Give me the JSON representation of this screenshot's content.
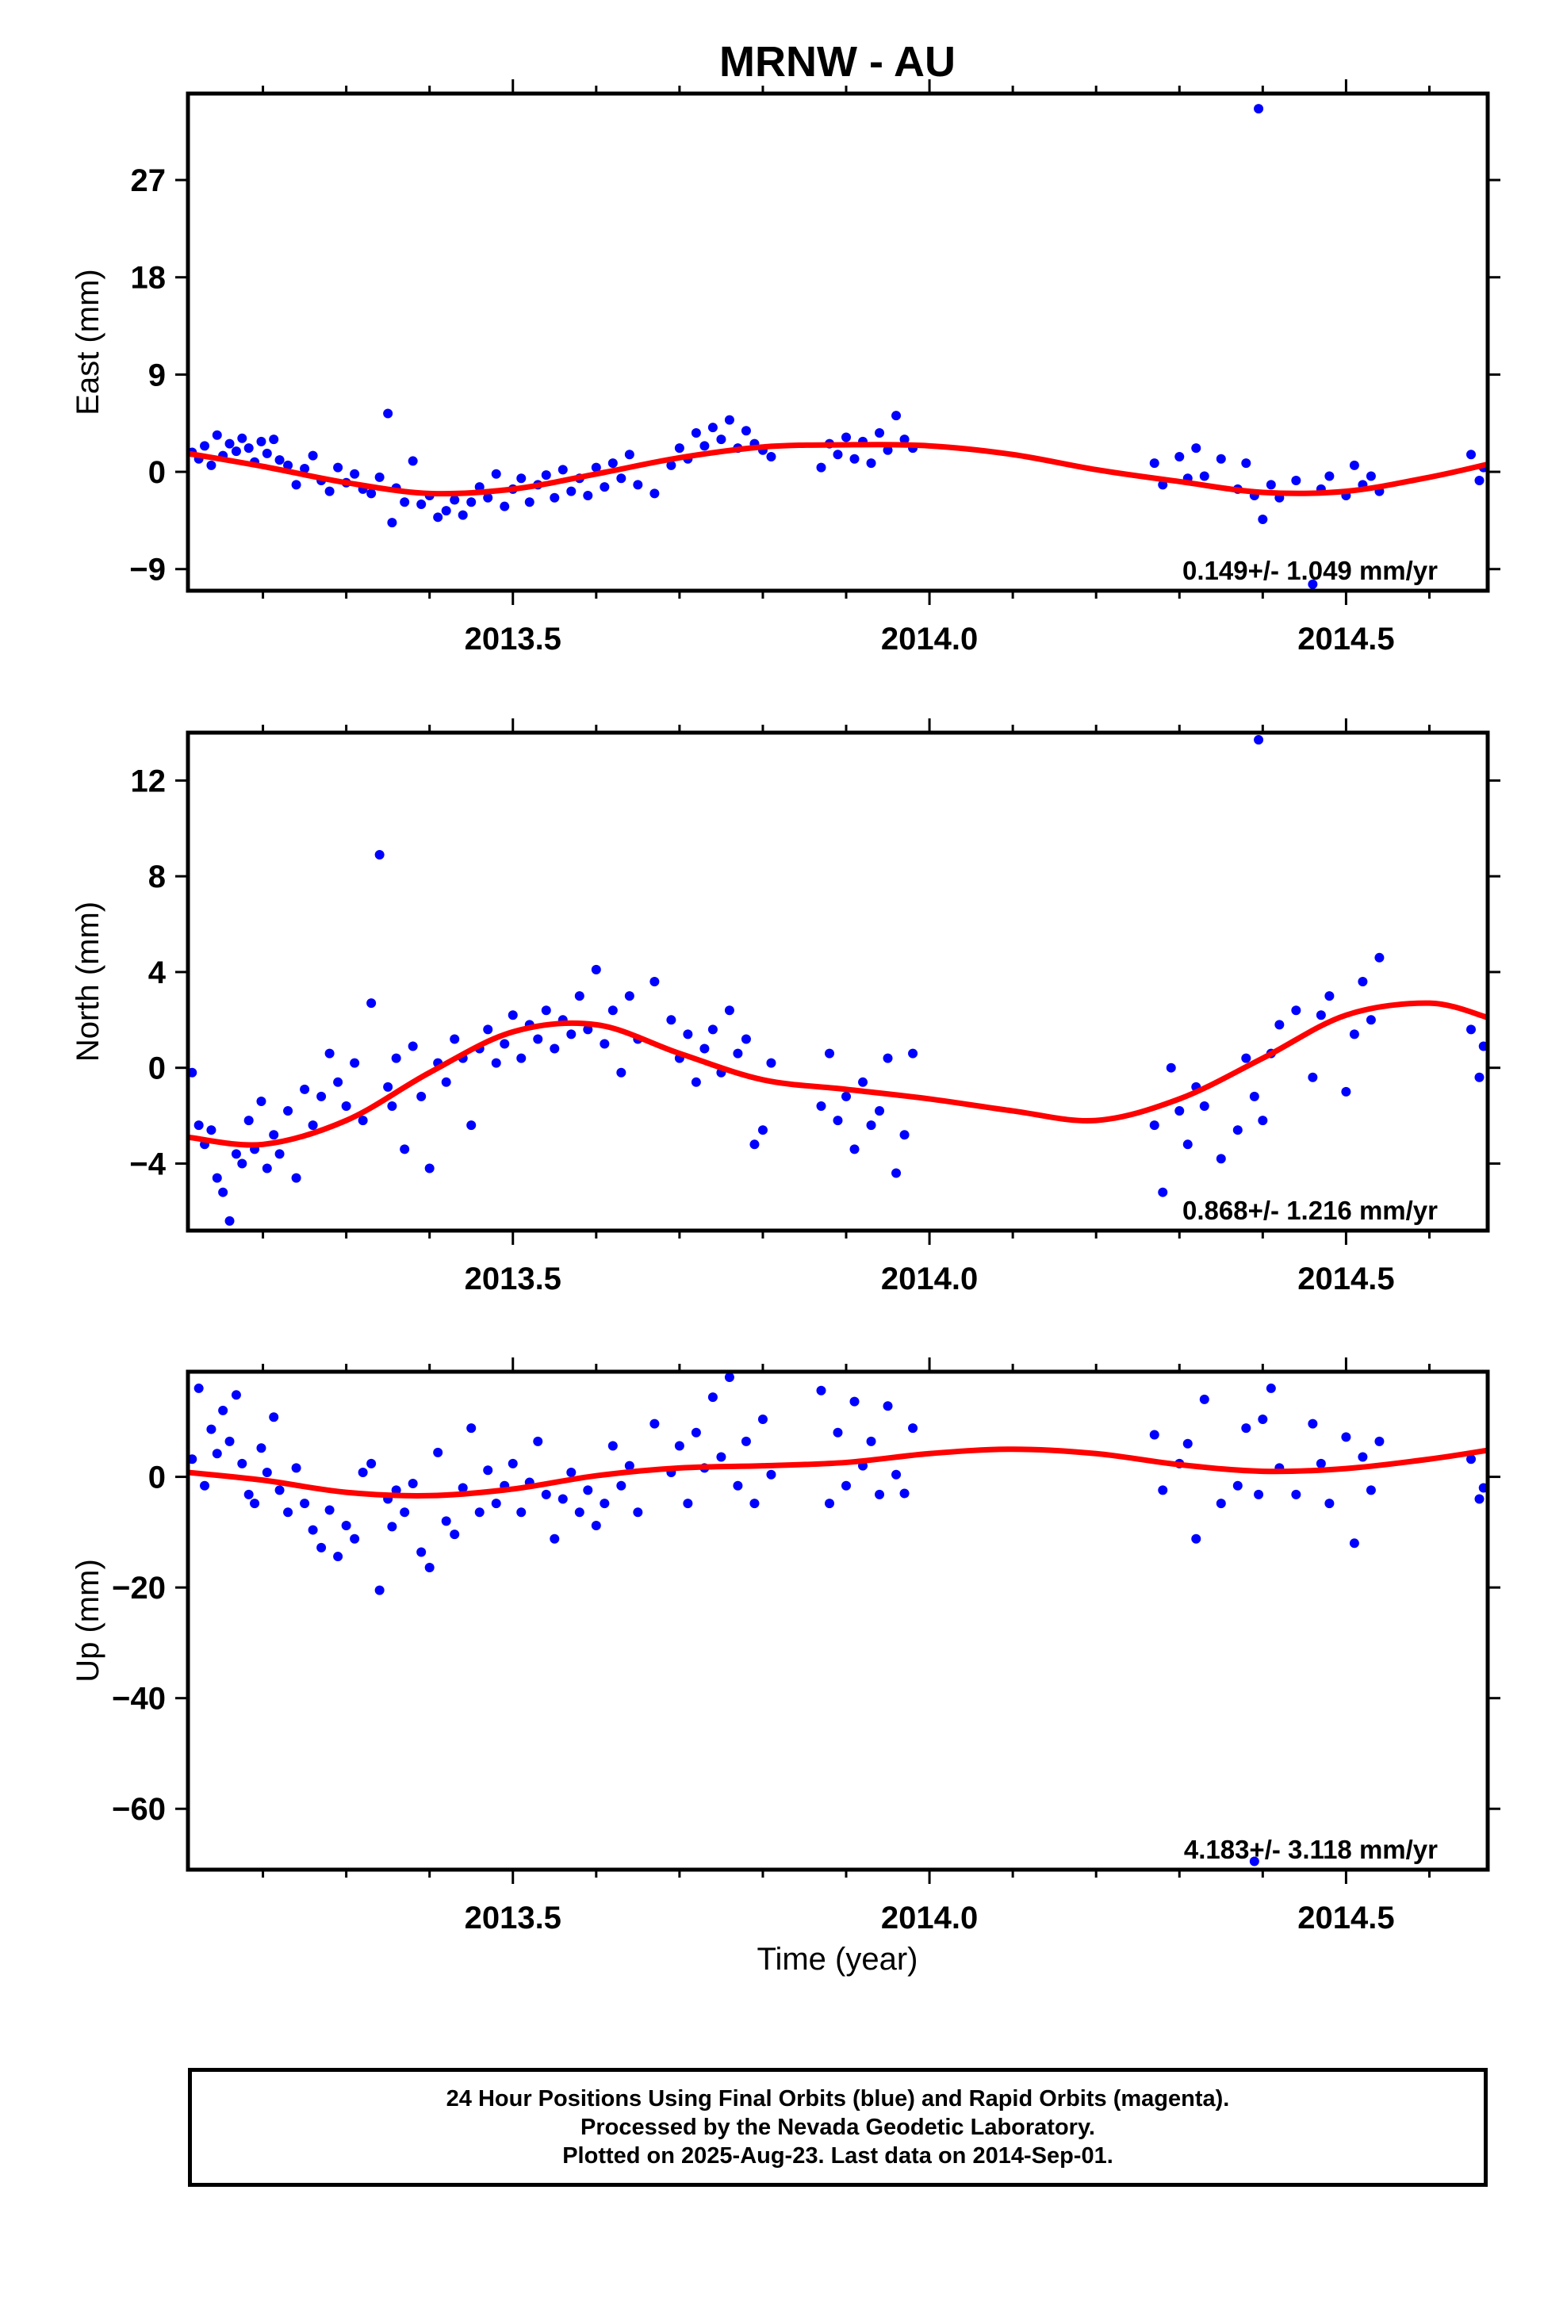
{
  "title": "MRNW - AU",
  "xlabel": "Time (year)",
  "colors": {
    "points": "#0000ff",
    "fit": "#ff0000",
    "frame": "#000000"
  },
  "footer": {
    "line1": "24 Hour Positions Using Final Orbits (blue) and Rapid Orbits (magenta).",
    "line2": "Processed by the Nevada Geodetic Laboratory.",
    "line3": "Plotted on 2025-Aug-23. Last data on 2014-Sep-01."
  },
  "chart_data": [
    {
      "type": "scatter",
      "component": "East",
      "ylabel": "East (mm)",
      "ylim": [
        -11,
        35
      ],
      "yticks": [
        -9,
        0,
        9,
        18,
        27
      ],
      "xlim": [
        2013.11,
        2014.67
      ],
      "xticks": [
        2013.5,
        2014.0,
        2014.5
      ],
      "velocity": "0.149+/- 1.049 mm/yr",
      "series": [
        {
          "kind": "points",
          "x": [
            2013.115,
            2013.123,
            2013.13,
            2013.138,
            2013.145,
            2013.152,
            2013.16,
            2013.168,
            2013.175,
            2013.183,
            2013.19,
            2013.198,
            2013.205,
            2013.213,
            2013.22,
            2013.23,
            2013.24,
            2013.25,
            2013.26,
            2013.27,
            2013.28,
            2013.29,
            2013.3,
            2013.31,
            2013.32,
            2013.33,
            2013.34,
            2013.35,
            2013.355,
            2013.36,
            2013.37,
            2013.38,
            2013.39,
            2013.4,
            2013.41,
            2013.42,
            2013.43,
            2013.44,
            2013.45,
            2013.46,
            2013.47,
            2013.48,
            2013.49,
            2013.5,
            2013.51,
            2013.52,
            2013.53,
            2013.54,
            2013.55,
            2013.56,
            2013.57,
            2013.58,
            2013.59,
            2013.6,
            2013.61,
            2013.62,
            2013.63,
            2013.64,
            2013.65,
            2013.67,
            2013.69,
            2013.7,
            2013.71,
            2013.72,
            2013.73,
            2013.74,
            2013.75,
            2013.76,
            2013.77,
            2013.78,
            2013.79,
            2013.8,
            2013.81,
            2013.87,
            2013.88,
            2013.89,
            2013.9,
            2013.91,
            2013.92,
            2013.93,
            2013.94,
            2013.95,
            2013.96,
            2013.97,
            2013.98,
            2014.27,
            2014.28,
            2014.3,
            2014.31,
            2014.32,
            2014.33,
            2014.35,
            2014.37,
            2014.38,
            2014.39,
            2014.395,
            2014.4,
            2014.41,
            2014.42,
            2014.44,
            2014.46,
            2014.47,
            2014.48,
            2014.5,
            2014.51,
            2014.52,
            2014.53,
            2014.54,
            2014.65,
            2014.66,
            2014.665
          ],
          "y": [
            1.8,
            1.2,
            2.4,
            0.6,
            3.4,
            1.5,
            2.6,
            1.9,
            3.1,
            2.2,
            0.9,
            2.8,
            1.7,
            3.0,
            1.1,
            0.6,
            -1.2,
            0.3,
            1.5,
            -0.8,
            -1.8,
            0.4,
            -1.0,
            -0.2,
            -1.6,
            -2.0,
            -0.5,
            5.4,
            -4.7,
            -1.5,
            -2.8,
            1.0,
            -3.0,
            -2.2,
            -4.2,
            -3.6,
            -2.6,
            -4.0,
            -2.8,
            -1.4,
            -2.4,
            -0.2,
            -3.2,
            -1.6,
            -0.6,
            -2.8,
            -1.2,
            -0.3,
            -2.4,
            0.2,
            -1.8,
            -0.6,
            -2.2,
            0.4,
            -1.4,
            0.8,
            -0.6,
            1.6,
            -1.2,
            -2.0,
            0.6,
            2.2,
            1.2,
            3.6,
            2.4,
            4.1,
            3.0,
            4.8,
            2.2,
            3.8,
            2.6,
            2.0,
            1.4,
            0.4,
            2.6,
            1.6,
            3.2,
            1.2,
            2.8,
            0.8,
            3.6,
            2.0,
            5.2,
            3.0,
            2.2,
            0.8,
            -1.2,
            1.4,
            -0.6,
            2.2,
            -0.4,
            1.2,
            -1.6,
            0.8,
            -2.2,
            33.6,
            -4.4,
            -1.2,
            -2.4,
            -0.8,
            -10.4,
            -1.6,
            -0.4,
            -2.2,
            0.6,
            -1.2,
            -0.4,
            -1.8,
            1.6,
            -0.8,
            0.4
          ]
        },
        {
          "kind": "fit",
          "x": [
            2013.11,
            2013.2,
            2013.3,
            2013.4,
            2013.5,
            2013.6,
            2013.7,
            2013.8,
            2013.9,
            2014.0,
            2014.1,
            2014.2,
            2014.3,
            2014.4,
            2014.5,
            2014.6,
            2014.67
          ],
          "y": [
            1.7,
            0.5,
            -1.0,
            -2.0,
            -1.6,
            -0.2,
            1.3,
            2.3,
            2.5,
            2.4,
            1.6,
            0.2,
            -0.9,
            -1.9,
            -1.8,
            -0.5,
            0.7
          ]
        }
      ]
    },
    {
      "type": "scatter",
      "component": "North",
      "ylabel": "North (mm)",
      "ylim": [
        -6.8,
        14
      ],
      "yticks": [
        -4,
        0,
        4,
        8,
        12
      ],
      "xlim": [
        2013.11,
        2014.67
      ],
      "xticks": [
        2013.5,
        2014.0,
        2014.5
      ],
      "velocity": "0.868+/- 1.216 mm/yr",
      "series": [
        {
          "kind": "points",
          "x": [
            2013.115,
            2013.123,
            2013.13,
            2013.138,
            2013.145,
            2013.152,
            2013.16,
            2013.168,
            2013.175,
            2013.183,
            2013.19,
            2013.198,
            2013.205,
            2013.213,
            2013.22,
            2013.23,
            2013.24,
            2013.25,
            2013.26,
            2013.27,
            2013.28,
            2013.29,
            2013.3,
            2013.31,
            2013.32,
            2013.33,
            2013.34,
            2013.35,
            2013.355,
            2013.36,
            2013.37,
            2013.38,
            2013.39,
            2013.4,
            2013.41,
            2013.42,
            2013.43,
            2013.44,
            2013.45,
            2013.46,
            2013.47,
            2013.48,
            2013.49,
            2013.5,
            2013.51,
            2013.52,
            2013.53,
            2013.54,
            2013.55,
            2013.56,
            2013.57,
            2013.58,
            2013.59,
            2013.6,
            2013.61,
            2013.62,
            2013.63,
            2013.64,
            2013.65,
            2013.67,
            2013.69,
            2013.7,
            2013.71,
            2013.72,
            2013.73,
            2013.74,
            2013.75,
            2013.76,
            2013.77,
            2013.78,
            2013.79,
            2013.8,
            2013.81,
            2013.87,
            2013.88,
            2013.89,
            2013.9,
            2013.91,
            2013.92,
            2013.93,
            2013.94,
            2013.95,
            2013.96,
            2013.97,
            2013.98,
            2014.27,
            2014.28,
            2014.29,
            2014.3,
            2014.31,
            2014.32,
            2014.33,
            2014.35,
            2014.37,
            2014.38,
            2014.39,
            2014.395,
            2014.4,
            2014.41,
            2014.42,
            2014.44,
            2014.46,
            2014.47,
            2014.48,
            2014.5,
            2014.51,
            2014.52,
            2014.53,
            2014.54,
            2014.65,
            2014.66,
            2014.665
          ],
          "y": [
            -0.2,
            -2.4,
            -3.2,
            -2.6,
            -4.6,
            -5.2,
            -6.4,
            -3.6,
            -4.0,
            -2.2,
            -3.4,
            -1.4,
            -4.2,
            -2.8,
            -3.6,
            -1.8,
            -4.6,
            -0.9,
            -2.4,
            -1.2,
            0.6,
            -0.6,
            -1.6,
            0.2,
            -2.2,
            2.7,
            8.9,
            -0.8,
            -1.6,
            0.4,
            -3.4,
            0.9,
            -1.2,
            -4.2,
            0.2,
            -0.6,
            1.2,
            0.4,
            -2.4,
            0.8,
            1.6,
            0.2,
            1.0,
            2.2,
            0.4,
            1.8,
            1.2,
            2.4,
            0.8,
            2.0,
            1.4,
            3.0,
            1.6,
            4.1,
            1.0,
            2.4,
            -0.2,
            3.0,
            1.2,
            3.6,
            2.0,
            0.4,
            1.4,
            -0.6,
            0.8,
            1.6,
            -0.2,
            2.4,
            0.6,
            1.2,
            -3.2,
            -2.6,
            0.2,
            -1.6,
            0.6,
            -2.2,
            -1.2,
            -3.4,
            -0.6,
            -2.4,
            -1.8,
            0.4,
            -4.4,
            -2.8,
            0.6,
            -2.4,
            -5.2,
            0.0,
            -1.8,
            -3.2,
            -0.8,
            -1.6,
            -3.8,
            -2.6,
            0.4,
            -1.2,
            13.7,
            -2.2,
            0.6,
            1.8,
            2.4,
            -0.4,
            2.2,
            3.0,
            -1.0,
            1.4,
            3.6,
            2.0,
            4.6,
            1.6,
            -0.4,
            0.9
          ]
        },
        {
          "kind": "fit",
          "x": [
            2013.11,
            2013.2,
            2013.3,
            2013.4,
            2013.5,
            2013.6,
            2013.7,
            2013.8,
            2013.9,
            2014.0,
            2014.1,
            2014.2,
            2014.3,
            2014.4,
            2014.5,
            2014.6,
            2014.67
          ],
          "y": [
            -2.9,
            -3.2,
            -2.2,
            -0.2,
            1.5,
            1.8,
            0.6,
            -0.5,
            -0.9,
            -1.3,
            -1.8,
            -2.2,
            -1.3,
            0.4,
            2.2,
            2.7,
            2.1
          ]
        }
      ]
    },
    {
      "type": "scatter",
      "component": "Up",
      "ylabel": "Up (mm)",
      "ylim": [
        -71,
        19
      ],
      "yticks": [
        -60,
        -40,
        -20,
        0
      ],
      "xlim": [
        2013.11,
        2014.67
      ],
      "xticks": [
        2013.5,
        2014.0,
        2014.5
      ],
      "velocity": "4.183+/- 3.118 mm/yr",
      "series": [
        {
          "kind": "points",
          "x": [
            2013.115,
            2013.123,
            2013.13,
            2013.138,
            2013.145,
            2013.152,
            2013.16,
            2013.168,
            2013.175,
            2013.183,
            2013.19,
            2013.198,
            2013.205,
            2013.213,
            2013.22,
            2013.23,
            2013.24,
            2013.25,
            2013.26,
            2013.27,
            2013.28,
            2013.29,
            2013.3,
            2013.31,
            2013.32,
            2013.33,
            2013.34,
            2013.35,
            2013.355,
            2013.36,
            2013.37,
            2013.38,
            2013.39,
            2013.4,
            2013.41,
            2013.42,
            2013.43,
            2013.44,
            2013.45,
            2013.46,
            2013.47,
            2013.48,
            2013.49,
            2013.5,
            2013.51,
            2013.52,
            2013.53,
            2013.54,
            2013.55,
            2013.56,
            2013.57,
            2013.58,
            2013.59,
            2013.6,
            2013.61,
            2013.62,
            2013.63,
            2013.64,
            2013.65,
            2013.67,
            2013.69,
            2013.7,
            2013.71,
            2013.72,
            2013.73,
            2013.74,
            2013.75,
            2013.76,
            2013.77,
            2013.78,
            2013.79,
            2013.8,
            2013.81,
            2013.87,
            2013.88,
            2013.89,
            2013.9,
            2013.91,
            2013.92,
            2013.93,
            2013.94,
            2013.95,
            2013.96,
            2013.97,
            2013.98,
            2014.27,
            2014.28,
            2014.3,
            2014.31,
            2014.32,
            2014.33,
            2014.35,
            2014.37,
            2014.38,
            2014.39,
            2014.395,
            2014.4,
            2014.41,
            2014.42,
            2014.44,
            2014.46,
            2014.47,
            2014.48,
            2014.5,
            2014.51,
            2014.52,
            2014.53,
            2014.54,
            2014.65,
            2014.66,
            2014.665
          ],
          "y": [
            3.2,
            16.0,
            -1.6,
            8.6,
            4.2,
            12.0,
            6.4,
            14.8,
            2.4,
            -3.2,
            -4.8,
            5.2,
            0.8,
            10.8,
            -2.4,
            -6.4,
            1.6,
            -4.8,
            -9.6,
            -12.8,
            -6.0,
            -14.4,
            -8.8,
            -11.2,
            0.8,
            2.4,
            -20.5,
            -4.0,
            -9.0,
            -2.4,
            -6.4,
            -1.2,
            -13.6,
            -16.4,
            4.4,
            -8.0,
            -10.4,
            -2.0,
            8.8,
            -6.4,
            1.2,
            -4.8,
            -1.6,
            2.4,
            -6.4,
            -1.0,
            6.4,
            -3.2,
            -11.2,
            -4.0,
            0.8,
            -6.4,
            -2.4,
            -8.8,
            -4.8,
            5.6,
            -1.6,
            2.0,
            -6.4,
            9.6,
            0.8,
            5.6,
            -4.8,
            8.0,
            1.6,
            14.4,
            3.6,
            18.0,
            -1.6,
            6.4,
            -4.8,
            10.4,
            0.4,
            15.6,
            -4.8,
            8.0,
            -1.6,
            13.6,
            2.0,
            6.4,
            -3.2,
            12.8,
            0.4,
            -3.0,
            8.8,
            7.6,
            -2.4,
            2.4,
            6.0,
            -11.2,
            14.0,
            -4.8,
            -1.6,
            8.8,
            -69.5,
            -3.2,
            10.4,
            16.0,
            1.6,
            -3.2,
            9.6,
            2.4,
            -4.8,
            7.2,
            -12.0,
            3.6,
            -2.4,
            6.4,
            3.2,
            -4.0,
            -2.0
          ]
        },
        {
          "kind": "fit",
          "x": [
            2013.11,
            2013.2,
            2013.3,
            2013.4,
            2013.5,
            2013.6,
            2013.7,
            2013.8,
            2013.9,
            2014.0,
            2014.1,
            2014.2,
            2014.3,
            2014.4,
            2014.5,
            2014.6,
            2014.67
          ],
          "y": [
            0.8,
            -0.6,
            -2.8,
            -3.4,
            -2.2,
            0.2,
            1.6,
            2.0,
            2.6,
            4.2,
            5.0,
            4.2,
            2.2,
            1.0,
            1.5,
            3.2,
            4.8
          ]
        }
      ]
    }
  ]
}
